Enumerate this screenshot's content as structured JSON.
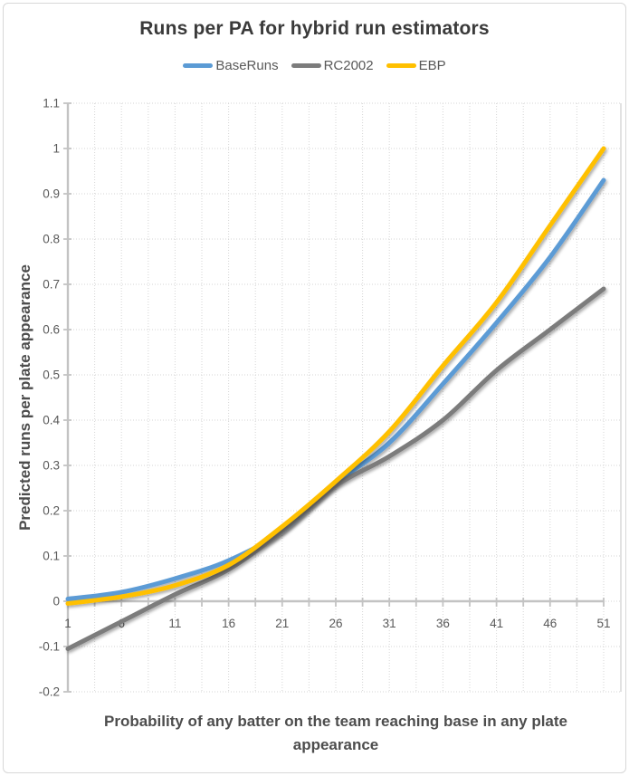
{
  "window": {
    "background": "#ffffff",
    "border_color": "#d7d7d7"
  },
  "chart_data": {
    "type": "line",
    "title": "Runs per PA for hybrid run estimators",
    "xlabel": "Probability of any batter on the team reaching base in any plate appearance",
    "ylabel": "Predicted runs per plate appearance",
    "x": [
      1,
      6,
      11,
      16,
      21,
      26,
      31,
      36,
      41,
      46,
      51
    ],
    "series": [
      {
        "name": "BaseRuns",
        "color": "#5B9BD5",
        "values": [
          0.005,
          0.02,
          0.05,
          0.09,
          0.155,
          0.26,
          0.35,
          0.48,
          0.615,
          0.76,
          0.93
        ]
      },
      {
        "name": "RC2002",
        "color": "#7C7C7C",
        "values": [
          -0.105,
          -0.045,
          0.015,
          0.07,
          0.155,
          0.255,
          0.32,
          0.4,
          0.51,
          0.6,
          0.69
        ]
      },
      {
        "name": "EBP",
        "color": "#FFC000",
        "values": [
          -0.005,
          0.01,
          0.035,
          0.08,
          0.165,
          0.265,
          0.375,
          0.52,
          0.66,
          0.83,
          1.0
        ]
      }
    ],
    "xlim": [
      1,
      51
    ],
    "ylim": [
      -0.2,
      1.1
    ],
    "x_tick_labels": [
      "1",
      "6",
      "11",
      "16",
      "21",
      "26",
      "31",
      "36",
      "41",
      "46",
      "51"
    ],
    "x_major_tick_interval": 5,
    "x_minor_tick_interval": 2.5,
    "y_ticks": {
      "values": [
        1.1,
        1.0,
        0.9,
        0.8,
        0.7,
        0.6,
        0.5,
        0.4,
        0.3,
        0.2,
        0.1,
        0.0,
        -0.1,
        -0.2
      ],
      "labels": [
        "1.1",
        "1",
        "0.9",
        "0.8",
        "0.7",
        "0.6",
        "0.5",
        "0.4",
        "0.3",
        "0.2",
        "0.1",
        "0",
        "-0.1",
        "-0.2"
      ]
    },
    "grid": "dotted",
    "legend_position": "top",
    "colors": {
      "axis_line": "#c3c3c3",
      "grid_line": "#d6d6d6",
      "tick_label": "#595959",
      "title_text": "#3a3a3a",
      "axis_title_text": "#4d4d4d"
    }
  }
}
